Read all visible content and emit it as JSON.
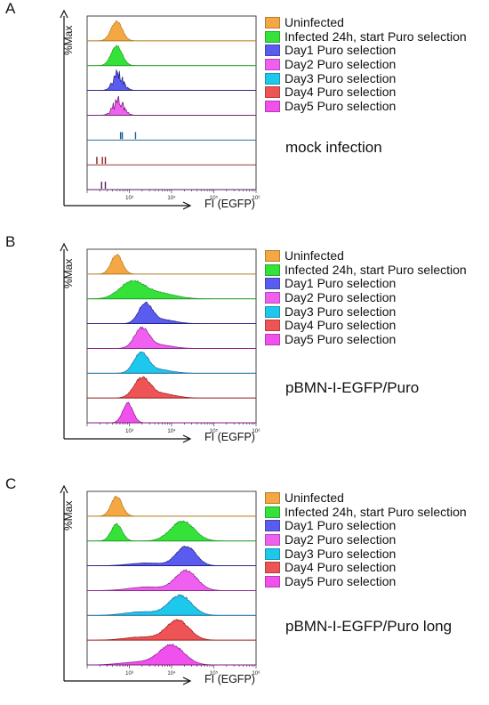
{
  "figure": {
    "panels": [
      {
        "letter": "A",
        "condition": "mock infection",
        "ylabel": "%Max",
        "xlabel": "FI (EGFP)"
      },
      {
        "letter": "B",
        "condition": "pBMN-I-EGFP/Puro",
        "ylabel": "%Max",
        "xlabel": "FI (EGFP)"
      },
      {
        "letter": "C",
        "condition": "pBMN-I-EGFP/Puro long",
        "ylabel": "%Max",
        "xlabel": "FI (EGFP)"
      }
    ],
    "legend": [
      {
        "label": "Uninfected",
        "color": "#F4A742"
      },
      {
        "label": "Infected 24h, start Puro selection",
        "color": "#35E23A"
      },
      {
        "label": "Day1 Puro selection",
        "color": "#5A5CF0"
      },
      {
        "label": "Day2 Puro selection",
        "color": "#F060F0"
      },
      {
        "label": "Day3 Puro selection",
        "color": "#1EC8EC"
      },
      {
        "label": "Day4 Puro selection",
        "color": "#EE5456"
      },
      {
        "label": "Day5 Puro selection",
        "color": "#F050EC"
      }
    ],
    "x_tick_labels": [
      "10³",
      "10⁴",
      "10⁵",
      "10⁶"
    ]
  },
  "chart_data": [
    {
      "type": "area",
      "title": "mock infection",
      "xlabel": "FI (EGFP)",
      "ylabel": "%Max",
      "x_scale": "log",
      "xlim": [
        100,
        1000000
      ],
      "stacked_offset_histograms": true,
      "series": [
        {
          "name": "Uninfected",
          "color": "#F4A742",
          "edge": "#B07A20",
          "peaks": [
            {
              "center": 500,
              "spread": 0.13,
              "height": 1.0
            }
          ]
        },
        {
          "name": "Infected 24h, start Puro selection",
          "color": "#35E23A",
          "edge": "#1F9A23",
          "peaks": [
            {
              "center": 500,
              "spread": 0.13,
              "height": 1.0
            }
          ]
        },
        {
          "name": "Day1 Puro selection",
          "color": "#5A5CF0",
          "edge": "#1E1E80",
          "noisy": true,
          "peaks": [
            {
              "center": 550,
              "spread": 0.12,
              "height": 1.0
            }
          ]
        },
        {
          "name": "Day2 Puro selection",
          "color": "#F060F0",
          "edge": "#6A1A6A",
          "noisy": true,
          "peaks": [
            {
              "center": 550,
              "spread": 0.12,
              "height": 0.9
            }
          ]
        },
        {
          "name": "Day3 Puro selection",
          "color": "#1EC8EC",
          "edge": "#1A5C8C",
          "events": [
            620,
            680,
            1400
          ]
        },
        {
          "name": "Day4 Puro selection",
          "color": "#EE5456",
          "edge": "#8C1A1A",
          "events": [
            170,
            230,
            270
          ]
        },
        {
          "name": "Day5 Puro selection",
          "color": "#F050EC",
          "edge": "#5A1A6A",
          "events": [
            220,
            270
          ]
        }
      ]
    },
    {
      "type": "area",
      "title": "pBMN-I-EGFP/Puro",
      "xlabel": "FI (EGFP)",
      "ylabel": "%Max",
      "x_scale": "log",
      "xlim": [
        100,
        1000000
      ],
      "stacked_offset_histograms": true,
      "series": [
        {
          "name": "Uninfected",
          "color": "#F4A742",
          "edge": "#B07A20",
          "peaks": [
            {
              "center": 500,
              "spread": 0.13,
              "height": 1.0
            }
          ]
        },
        {
          "name": "Infected 24h, start Puro selection",
          "color": "#35E23A",
          "edge": "#1F9A23",
          "peaks": [
            {
              "center": 1100,
              "spread": 0.28,
              "height": 0.78
            },
            {
              "center": 4000,
              "spread": 0.42,
              "height": 0.33
            }
          ]
        },
        {
          "name": "Day1 Puro selection",
          "color": "#5A5CF0",
          "edge": "#1E1E80",
          "peaks": [
            {
              "center": 2400,
              "spread": 0.16,
              "height": 1.0
            },
            {
              "center": 6000,
              "spread": 0.3,
              "height": 0.2
            }
          ]
        },
        {
          "name": "Day2 Puro selection",
          "color": "#F060F0",
          "edge": "#8A1A8A",
          "peaks": [
            {
              "center": 1950,
              "spread": 0.17,
              "height": 1.0
            },
            {
              "center": 5000,
              "spread": 0.3,
              "height": 0.18
            }
          ]
        },
        {
          "name": "Day3 Puro selection",
          "color": "#1EC8EC",
          "edge": "#1A6C9C",
          "peaks": [
            {
              "center": 1900,
              "spread": 0.17,
              "height": 1.0
            },
            {
              "center": 5000,
              "spread": 0.3,
              "height": 0.18
            }
          ]
        },
        {
          "name": "Day4 Puro selection",
          "color": "#EE5456",
          "edge": "#9C1A1A",
          "peaks": [
            {
              "center": 2000,
              "spread": 0.19,
              "height": 1.0
            },
            {
              "center": 6000,
              "spread": 0.3,
              "height": 0.22
            }
          ]
        },
        {
          "name": "Day5 Puro selection",
          "color": "#F050EC",
          "edge": "#8A1A8A",
          "peaks": [
            {
              "center": 920,
              "spread": 0.12,
              "height": 1.0
            }
          ]
        }
      ]
    },
    {
      "type": "area",
      "title": "pBMN-I-EGFP/Puro long",
      "xlabel": "FI (EGFP)",
      "ylabel": "%Max",
      "x_scale": "log",
      "xlim": [
        100,
        1000000
      ],
      "stacked_offset_histograms": true,
      "series": [
        {
          "name": "Uninfected",
          "color": "#F4A742",
          "edge": "#B07A20",
          "peaks": [
            {
              "center": 500,
              "spread": 0.13,
              "height": 1.0
            }
          ]
        },
        {
          "name": "Infected 24h, start Puro selection",
          "color": "#35E23A",
          "edge": "#1F9A23",
          "peaks": [
            {
              "center": 500,
              "spread": 0.13,
              "height": 0.85
            },
            {
              "center": 18000,
              "spread": 0.28,
              "height": 1.0
            }
          ]
        },
        {
          "name": "Day1 Puro selection",
          "color": "#5A5CF0",
          "edge": "#1E1E80",
          "peaks": [
            {
              "center": 22000,
              "spread": 0.23,
              "height": 1.0
            },
            {
              "center": 2500,
              "spread": 0.4,
              "height": 0.14
            }
          ]
        },
        {
          "name": "Day2 Puro selection",
          "color": "#F060F0",
          "edge": "#8A1A8A",
          "peaks": [
            {
              "center": 22000,
              "spread": 0.26,
              "height": 1.0
            },
            {
              "center": 2500,
              "spread": 0.4,
              "height": 0.18
            }
          ]
        },
        {
          "name": "Day3 Puro selection",
          "color": "#1EC8EC",
          "edge": "#1A6C9C",
          "peaks": [
            {
              "center": 16000,
              "spread": 0.27,
              "height": 1.0
            },
            {
              "center": 2000,
              "spread": 0.4,
              "height": 0.18
            }
          ]
        },
        {
          "name": "Day4 Puro selection",
          "color": "#EE5456",
          "edge": "#9C1A1A",
          "peaks": [
            {
              "center": 14000,
              "spread": 0.27,
              "height": 1.0
            },
            {
              "center": 2000,
              "spread": 0.4,
              "height": 0.16
            }
          ]
        },
        {
          "name": "Day5 Puro selection",
          "color": "#F050EC",
          "edge": "#8A1A8A",
          "peaks": [
            {
              "center": 10000,
              "spread": 0.3,
              "height": 1.0
            },
            {
              "center": 1500,
              "spread": 0.4,
              "height": 0.14
            }
          ]
        }
      ]
    }
  ]
}
